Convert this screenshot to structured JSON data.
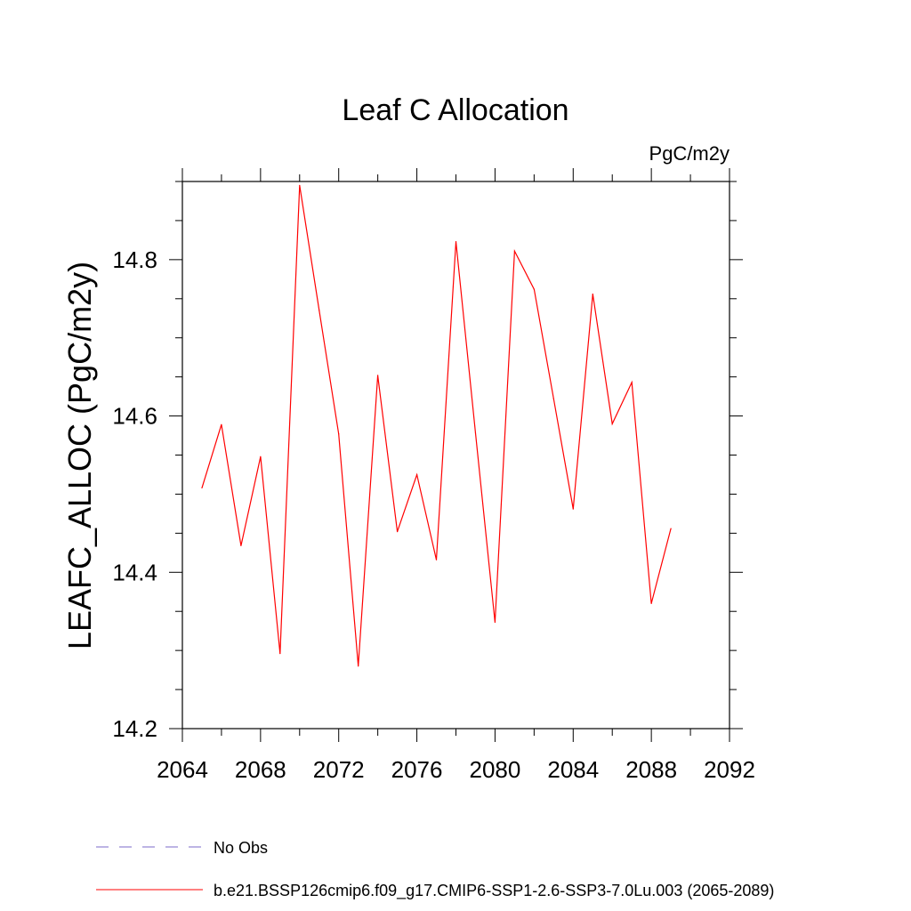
{
  "chart_data": {
    "type": "line",
    "title": "Leaf C Allocation",
    "units": "PgC/m2y",
    "xlabel": "",
    "ylabel": "LEAFC_ALLOC  (PgC/m2y)",
    "xlim": [
      2064,
      2092
    ],
    "ylim": [
      14.2,
      14.9
    ],
    "x_ticks": [
      2064,
      2068,
      2072,
      2076,
      2080,
      2084,
      2088,
      2092
    ],
    "x_minor_step": 2,
    "y_ticks": [
      14.2,
      14.4,
      14.6,
      14.8
    ],
    "y_tick_labels": [
      "14.2",
      "14.4",
      "14.6",
      "14.8"
    ],
    "y_minor_step": 0.05,
    "grid": false,
    "legend_position": "bottom-left",
    "series": [
      {
        "name": "b.e21.BSSP126cmip6.f09_g17.CMIP6-SSP1-2.6-SSP3-7.0Lu.003 (2065-2089)",
        "color": "#ff0000",
        "style": "solid",
        "x": [
          2065,
          2066,
          2067,
          2068,
          2069,
          2070,
          2071,
          2072,
          2073,
          2074,
          2075,
          2076,
          2077,
          2078,
          2079,
          2080,
          2081,
          2082,
          2083,
          2084,
          2085,
          2086,
          2087,
          2088,
          2089
        ],
        "values": [
          14.508,
          14.589,
          14.434,
          14.548,
          14.296,
          14.895,
          14.735,
          14.577,
          14.28,
          14.652,
          14.452,
          14.525,
          14.416,
          14.823,
          14.578,
          14.336,
          14.811,
          14.762,
          14.622,
          14.481,
          14.756,
          14.59,
          14.643,
          14.36,
          14.456
        ]
      }
    ],
    "legend": [
      {
        "label": "No Obs",
        "color": "#7b68c8",
        "style": "dashed"
      },
      {
        "label": "b.e21.BSSP126cmip6.f09_g17.CMIP6-SSP1-2.6-SSP3-7.0Lu.003 (2065-2089)",
        "color": "#ff0000",
        "style": "solid"
      }
    ]
  }
}
